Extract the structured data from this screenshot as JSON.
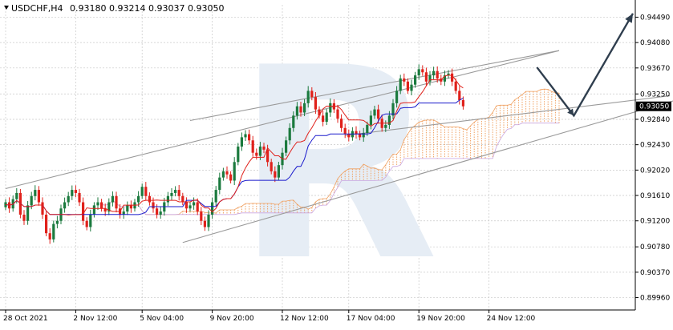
{
  "header": {
    "symbol_timeframe": "USDCHF,H4",
    "ohlc": "0.93180 0.93214 0.93037 0.93050"
  },
  "watermark": "R",
  "colors": {
    "bull": "#1b7a3e",
    "bear": "#e0211b",
    "tenkan": "#e0211b",
    "kijun": "#1a1acc",
    "cloud_orange": "#f0a060",
    "cloud_purple": "#c9a6e0",
    "channel": "#9a9a9a",
    "arrow": "#2f3e4e",
    "grid": "#c8c8c8",
    "price_box": "#000000"
  },
  "chart_data": {
    "type": "candlestick",
    "title": "USDCHF,H4",
    "ylim": [
      0.8976,
      0.9469
    ],
    "y_ticks": [
      "0.94490",
      "0.94080",
      "0.93670",
      "0.93250",
      "0.92840",
      "0.92430",
      "0.92020",
      "0.91610",
      "0.91200",
      "0.90780",
      "0.90370",
      "0.89960"
    ],
    "x_ticks": [
      {
        "label": "28 Oct 2021",
        "bar": 0
      },
      {
        "label": "2 Nov 12:00",
        "bar": 19
      },
      {
        "label": "5 Nov 04:00",
        "bar": 37
      },
      {
        "label": "9 Nov 20:00",
        "bar": 56
      },
      {
        "label": "12 Nov 12:00",
        "bar": 75
      },
      {
        "label": "17 Nov 04:00",
        "bar": 93
      },
      {
        "label": "19 Nov 20:00",
        "bar": 112
      },
      {
        "label": "24 Nov 12:00",
        "bar": 131
      }
    ],
    "current_price": "0.93050",
    "close": [
      0.915,
      0.914,
      0.9155,
      0.9165,
      0.913,
      0.912,
      0.9145,
      0.916,
      0.917,
      0.915,
      0.913,
      0.91,
      0.909,
      0.9115,
      0.912,
      0.914,
      0.915,
      0.916,
      0.917,
      0.9165,
      0.915,
      0.912,
      0.911,
      0.913,
      0.9145,
      0.915,
      0.914,
      0.9135,
      0.915,
      0.916,
      0.914,
      0.913,
      0.9135,
      0.9145,
      0.914,
      0.915,
      0.916,
      0.9175,
      0.916,
      0.915,
      0.914,
      0.913,
      0.9135,
      0.915,
      0.916,
      0.9165,
      0.917,
      0.916,
      0.915,
      0.914,
      0.9145,
      0.915,
      0.9135,
      0.912,
      0.911,
      0.913,
      0.915,
      0.917,
      0.919,
      0.92,
      0.9195,
      0.9185,
      0.9215,
      0.924,
      0.9255,
      0.926,
      0.925,
      0.923,
      0.9225,
      0.924,
      0.9235,
      0.9215,
      0.92,
      0.919,
      0.921,
      0.923,
      0.925,
      0.927,
      0.929,
      0.9305,
      0.9295,
      0.931,
      0.933,
      0.932,
      0.93,
      0.929,
      0.928,
      0.9295,
      0.931,
      0.93,
      0.9285,
      0.927,
      0.926,
      0.9255,
      0.9265,
      0.926,
      0.9255,
      0.9262,
      0.9275,
      0.929,
      0.93,
      0.9285,
      0.927,
      0.9275,
      0.929,
      0.931,
      0.933,
      0.935,
      0.9345,
      0.933,
      0.934,
      0.9355,
      0.9365,
      0.936,
      0.9345,
      0.9355,
      0.9362,
      0.935,
      0.9345,
      0.9355,
      0.9358,
      0.9345,
      0.933,
      0.9315,
      0.9305
    ],
    "channel_lines": [
      {
        "from": {
          "bar": 0,
          "price": 0.9172
        },
        "to": {
          "bar": 150,
          "price": 0.9395
        }
      },
      {
        "from": {
          "bar": 48,
          "price": 0.9085
        },
        "to": {
          "bar": 202,
          "price": 0.935
        }
      },
      {
        "from": {
          "bar": 50,
          "price": 0.9282
        },
        "to": {
          "bar": 150,
          "price": 0.9395
        }
      },
      {
        "from": {
          "bar": 92,
          "price": 0.9258
        },
        "to": {
          "bar": 180,
          "price": 0.9322
        }
      }
    ],
    "forecast_arrow": [
      {
        "bar": 144,
        "price": 0.9368
      },
      {
        "bar": 154,
        "price": 0.929
      },
      {
        "bar": 170,
        "price": 0.9455
      }
    ]
  }
}
